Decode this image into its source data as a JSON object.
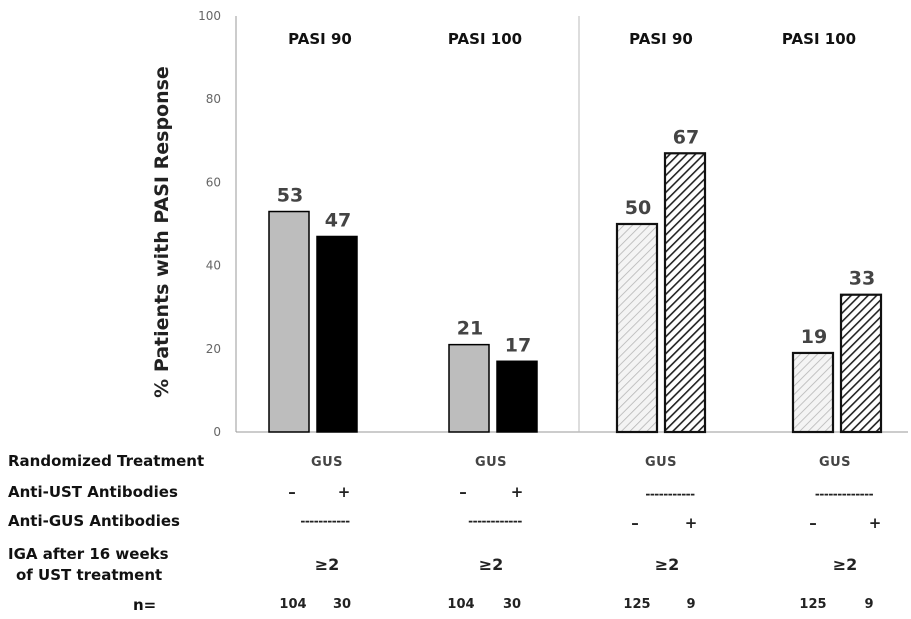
{
  "chart_data": {
    "type": "bar",
    "ylabel": "% Patients with PASI Response",
    "ylim": [
      0,
      100
    ],
    "yticks": [
      "0",
      "20",
      "40",
      "60",
      "80",
      "100"
    ],
    "groups": [
      {
        "title": "PASI 90",
        "bars": [
          {
            "value": 53,
            "label": "53",
            "style": "solid-gray"
          },
          {
            "value": 47,
            "label": "47",
            "style": "solid-black"
          }
        ]
      },
      {
        "title": "PASI 100",
        "bars": [
          {
            "value": 21,
            "label": "21",
            "style": "solid-gray"
          },
          {
            "value": 17,
            "label": "17",
            "style": "solid-black"
          }
        ]
      },
      {
        "title": "PASI 90",
        "bars": [
          {
            "value": 50,
            "label": "50",
            "style": "light-hatch"
          },
          {
            "value": 67,
            "label": "67",
            "style": "dense-hatch"
          }
        ]
      },
      {
        "title": "PASI 100",
        "bars": [
          {
            "value": 19,
            "label": "19",
            "style": "light-hatch"
          },
          {
            "value": 33,
            "label": "33",
            "style": "dense-hatch"
          }
        ]
      }
    ],
    "grid": false,
    "colors": {
      "solid-gray": "#bdbdbd",
      "solid-black": "#000000",
      "axis": "#999999",
      "labels": "#444444"
    }
  },
  "table": {
    "row_labels": {
      "randomized": "Randomized Treatment",
      "anti_ust": "Anti-UST Antibodies",
      "anti_gus": "Anti-GUS Antibodies",
      "iga_line1": "IGA after 16 weeks",
      "iga_line2": "of UST treatment",
      "n": "n="
    },
    "columns": [
      {
        "treatment": "GUS",
        "ust_a": "–",
        "ust_b": "+",
        "gus": "-----------",
        "iga": "≥2",
        "n_a": "104",
        "n_b": "30"
      },
      {
        "treatment": "GUS",
        "ust_a": "–",
        "ust_b": "+",
        "gus": "------------",
        "iga": "≥2",
        "n_a": "104",
        "n_b": "30"
      },
      {
        "treatment": "GUS",
        "ust": "-----------",
        "gus_a": "–",
        "gus_b": "+",
        "iga": "≥2",
        "n_a": "125",
        "n_b": "9"
      },
      {
        "treatment": "GUS",
        "ust": "-------------",
        "gus_a": "–",
        "gus_b": "+",
        "iga": "≥2",
        "n_a": "125",
        "n_b": "9"
      }
    ]
  }
}
